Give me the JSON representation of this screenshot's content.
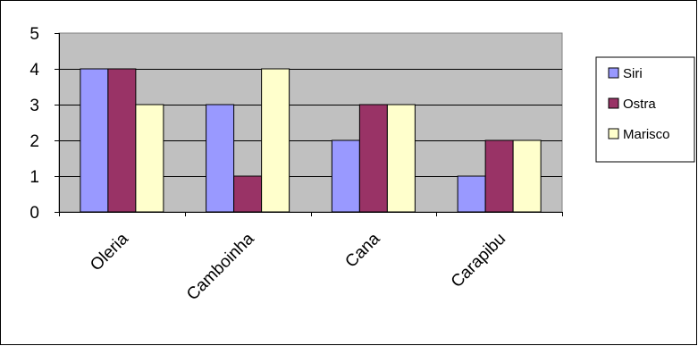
{
  "chart_data": {
    "type": "bar",
    "categories": [
      "Oleria",
      "Camboinha",
      "Cana",
      "Carapibu"
    ],
    "series": [
      {
        "name": "Siri",
        "values": [
          4,
          3,
          2,
          1
        ],
        "color": "#9999ff"
      },
      {
        "name": "Ostra",
        "values": [
          4,
          1,
          3,
          2
        ],
        "color": "#993366"
      },
      {
        "name": "Marisco",
        "values": [
          3,
          4,
          3,
          2
        ],
        "color": "#ffffcc"
      }
    ],
    "ylim": [
      0,
      5
    ],
    "yticks": [
      0,
      1,
      2,
      3,
      4,
      5
    ],
    "plot_background": "#c0c0c0",
    "grid": true,
    "legend_position": "right",
    "title": "",
    "xlabel": "",
    "ylabel": ""
  }
}
